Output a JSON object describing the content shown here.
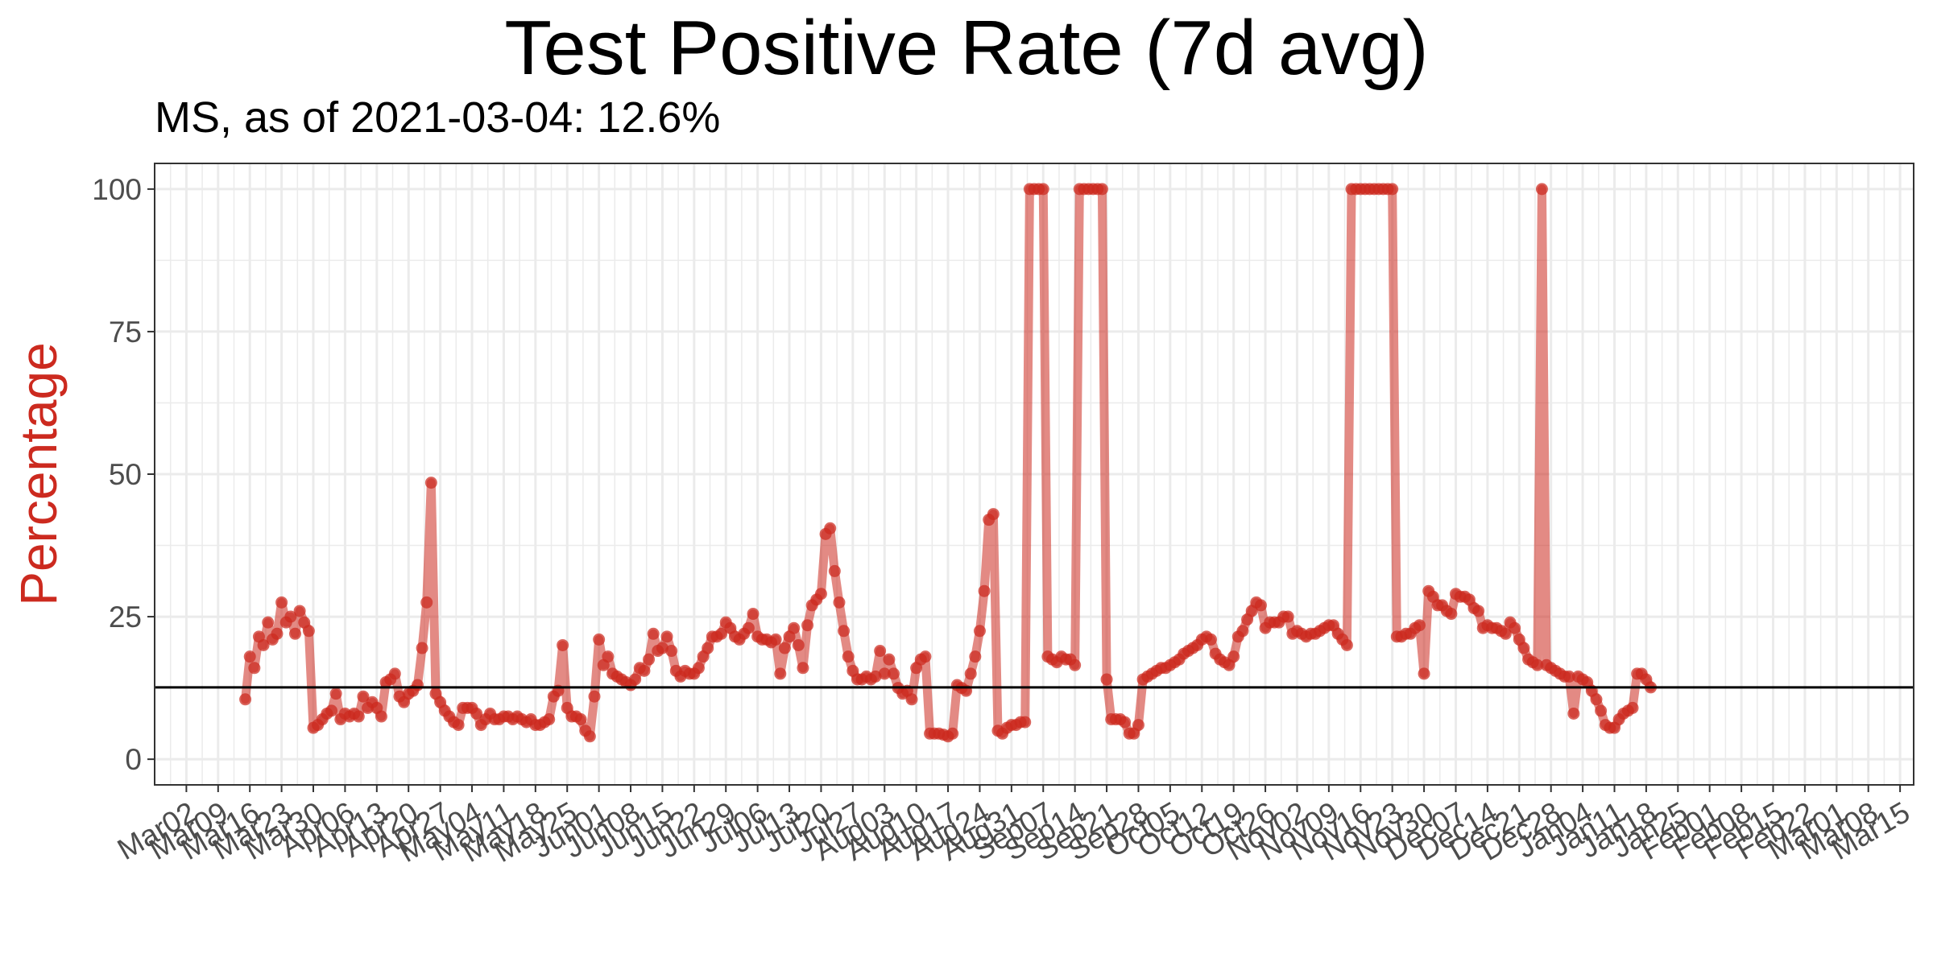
{
  "chart_data": {
    "type": "line",
    "title": "Test Positive Rate (7d avg)",
    "subtitle": "MS, as of 2021-03-04:  12.6%",
    "ylabel": "Percentage",
    "xlabel": "",
    "ylim": [
      -4.5,
      104.5
    ],
    "xlim": [
      "2020-02-24",
      "2021-03-18"
    ],
    "y_ticks": [
      0,
      25,
      50,
      75,
      100
    ],
    "x_ticks": [
      "2020-03-02",
      "2020-03-09",
      "2020-03-16",
      "2020-03-23",
      "2020-03-30",
      "2020-04-06",
      "2020-04-13",
      "2020-04-20",
      "2020-04-27",
      "2020-05-04",
      "2020-05-11",
      "2020-05-18",
      "2020-05-25",
      "2020-06-01",
      "2020-06-08",
      "2020-06-15",
      "2020-06-22",
      "2020-06-29",
      "2020-07-06",
      "2020-07-13",
      "2020-07-20",
      "2020-07-27",
      "2020-08-03",
      "2020-08-10",
      "2020-08-17",
      "2020-08-24",
      "2020-08-31",
      "2020-09-07",
      "2020-09-14",
      "2020-09-21",
      "2020-09-28",
      "2020-10-05",
      "2020-10-12",
      "2020-10-19",
      "2020-10-26",
      "2020-11-02",
      "2020-11-09",
      "2020-11-16",
      "2020-11-23",
      "2020-11-30",
      "2020-12-07",
      "2020-12-14",
      "2020-12-21",
      "2020-12-28",
      "2021-01-04",
      "2021-01-11",
      "2021-01-18",
      "2021-01-25",
      "2021-02-01",
      "2021-02-08",
      "2021-02-15",
      "2021-02-22",
      "2021-03-01",
      "2021-03-08",
      "2021-03-15"
    ],
    "x_tick_labels": [
      "Mar02",
      "Mar09",
      "Mar16",
      "Mar23",
      "Mar30",
      "Apr06",
      "Apr13",
      "Apr20",
      "Apr27",
      "May04",
      "May11",
      "May18",
      "May25",
      "Jun01",
      "Jun08",
      "Jun15",
      "Jun22",
      "Jun29",
      "Jul06",
      "Jul13",
      "Jul20",
      "Jul27",
      "Aug03",
      "Aug10",
      "Aug17",
      "Aug24",
      "Aug31",
      "Sep07",
      "Sep14",
      "Sep21",
      "Sep28",
      "Oct05",
      "Oct12",
      "Oct19",
      "Oct26",
      "Nov02",
      "Nov09",
      "Nov16",
      "Nov23",
      "Nov30",
      "Dec07",
      "Dec14",
      "Dec21",
      "Dec28",
      "Jan04",
      "Jan11",
      "Jan18",
      "Jan25",
      "Feb01",
      "Feb08",
      "Feb15",
      "Feb22",
      "Mar01",
      "Mar08",
      "Mar15"
    ],
    "grid": true,
    "legend": "none",
    "reference_line": 12.6,
    "colors": {
      "series": "#cc2a1f",
      "reference": "#000000",
      "ylabel": "#cc2a1f"
    },
    "series": [
      {
        "start_date": "2020-03-15",
        "values": [
          10.5,
          18,
          16,
          21.5,
          20,
          24,
          21,
          22,
          27.5,
          24,
          25,
          22,
          26,
          24,
          22.5,
          5.5,
          6,
          7,
          8,
          8.5,
          11.5,
          7,
          8,
          7.5,
          8,
          7.5,
          11,
          9,
          10,
          9,
          7.5,
          13.5,
          14,
          15,
          11,
          10,
          11.5,
          12,
          13,
          19.5,
          27.5,
          48.5,
          11.5,
          10,
          8.5,
          7.5,
          6.5,
          6,
          9,
          9,
          9,
          8,
          6,
          7,
          8,
          7,
          7,
          7.5,
          7.5,
          7,
          7.5,
          7,
          6.5,
          7,
          6,
          6,
          6.5,
          7,
          11,
          12,
          20,
          9,
          7.5,
          7.5,
          7,
          5,
          4,
          11,
          21,
          16.5,
          18,
          15,
          14.5,
          14,
          13.5,
          13,
          14,
          16,
          15.5,
          17.5,
          22,
          19,
          19.5,
          21.5,
          19,
          15.5,
          14.5,
          15.5,
          15,
          15,
          16,
          18,
          19.5,
          21.5,
          21.5,
          22,
          24,
          23,
          21.5,
          21,
          22,
          23,
          25.5,
          21.5,
          21,
          21,
          20.5,
          21,
          15,
          19.5,
          21.5,
          23,
          20,
          16,
          23.5,
          27,
          28,
          29,
          39.5,
          40.5,
          33,
          27.5,
          22.5,
          18,
          15.5,
          14,
          14,
          14.5,
          14,
          14.5,
          19,
          15,
          17.5,
          15,
          12.5,
          11.5,
          12,
          10.5,
          16,
          17.5,
          18,
          4.5,
          4.5,
          4.5,
          4.3,
          4,
          4.5,
          13,
          12.5,
          12,
          15,
          18,
          22.5,
          29.5,
          42,
          43,
          5,
          4.5,
          5.5,
          6,
          6,
          6.5,
          6.5,
          100,
          100,
          100,
          100,
          18,
          17.5,
          17,
          18,
          17.5,
          17.5,
          16.5,
          100,
          100,
          100,
          100,
          100,
          100,
          14,
          7,
          7,
          7,
          6.5,
          4.5,
          4.5,
          6,
          14,
          14.5,
          15,
          15.5,
          16,
          16,
          16.5,
          17,
          17.5,
          18.5,
          19,
          19.5,
          20,
          21,
          21.5,
          21,
          18.5,
          17.5,
          17,
          16.5,
          18,
          21.5,
          22.5,
          24.5,
          26,
          27.5,
          27,
          23,
          24,
          24,
          24,
          25,
          25,
          22,
          22.5,
          22,
          21.5,
          22,
          22,
          22.5,
          23,
          23.5,
          23.5,
          22,
          21,
          20,
          100,
          100,
          100,
          100,
          100,
          100,
          100,
          100,
          100,
          100,
          21.5,
          21.5,
          22,
          22,
          23,
          23.5,
          15,
          29.5,
          28.5,
          27,
          27,
          26,
          25.5,
          29,
          28.5,
          28.5,
          28,
          26.5,
          26,
          23,
          23.5,
          23,
          23,
          22.5,
          22,
          24,
          23,
          21,
          19.5,
          17.5,
          17,
          16.5,
          100,
          16.5,
          16,
          15.5,
          15,
          14.5,
          14.5,
          8,
          14.5,
          14,
          13.5,
          12,
          10.5,
          8.5,
          6,
          5.5,
          5.5,
          7,
          8,
          8.5,
          9,
          15,
          15,
          14,
          12.6
        ]
      }
    ]
  }
}
